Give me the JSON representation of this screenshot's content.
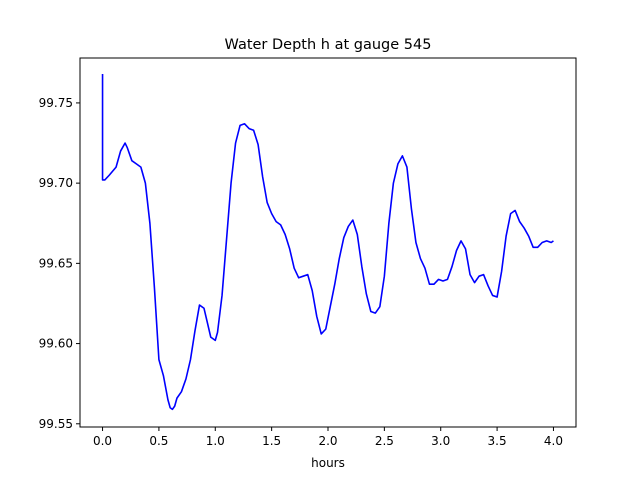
{
  "chart_data": {
    "type": "line",
    "title": "Water Depth h at gauge 545",
    "xlabel": "hours",
    "ylabel": "",
    "xlim": [
      -0.2,
      4.2
    ],
    "ylim": [
      99.548,
      99.778
    ],
    "xticks": [
      0.0,
      0.5,
      1.0,
      1.5,
      2.0,
      2.5,
      3.0,
      3.5,
      4.0
    ],
    "xtick_labels": [
      "0.0",
      "0.5",
      "1.0",
      "1.5",
      "2.0",
      "2.5",
      "3.0",
      "3.5",
      "4.0"
    ],
    "yticks": [
      99.55,
      99.6,
      99.65,
      99.7,
      99.75
    ],
    "ytick_labels": [
      "99.55",
      "99.60",
      "99.65",
      "99.70",
      "99.75"
    ],
    "grid": false,
    "series": [
      {
        "color": "#0000ff",
        "x": [
          0.0,
          0.0,
          0.02,
          0.06,
          0.12,
          0.16,
          0.2,
          0.22,
          0.26,
          0.3,
          0.34,
          0.38,
          0.42,
          0.46,
          0.5,
          0.54,
          0.58,
          0.6,
          0.62,
          0.64,
          0.66,
          0.7,
          0.74,
          0.78,
          0.82,
          0.86,
          0.9,
          0.93,
          0.96,
          1.0,
          1.02,
          1.06,
          1.1,
          1.14,
          1.18,
          1.22,
          1.26,
          1.3,
          1.34,
          1.38,
          1.42,
          1.46,
          1.5,
          1.54,
          1.58,
          1.62,
          1.66,
          1.7,
          1.74,
          1.78,
          1.82,
          1.86,
          1.9,
          1.94,
          1.98,
          2.02,
          2.06,
          2.1,
          2.14,
          2.18,
          2.22,
          2.26,
          2.3,
          2.34,
          2.38,
          2.42,
          2.46,
          2.5,
          2.54,
          2.58,
          2.62,
          2.66,
          2.7,
          2.74,
          2.78,
          2.82,
          2.86,
          2.9,
          2.94,
          2.98,
          3.02,
          3.06,
          3.1,
          3.14,
          3.18,
          3.22,
          3.26,
          3.3,
          3.34,
          3.38,
          3.42,
          3.46,
          3.5,
          3.54,
          3.58,
          3.62,
          3.66,
          3.7,
          3.74,
          3.78,
          3.82,
          3.86,
          3.9,
          3.94,
          3.98,
          4.0
        ],
        "y": [
          99.768,
          99.702,
          99.702,
          99.705,
          99.71,
          99.72,
          99.725,
          99.722,
          99.714,
          99.712,
          99.71,
          99.7,
          99.675,
          99.635,
          99.59,
          99.58,
          99.565,
          99.56,
          99.559,
          99.561,
          99.566,
          99.57,
          99.578,
          99.59,
          99.608,
          99.624,
          99.622,
          99.613,
          99.604,
          99.602,
          99.607,
          99.63,
          99.665,
          99.7,
          99.725,
          99.736,
          99.737,
          99.734,
          99.733,
          99.724,
          99.704,
          99.688,
          99.681,
          99.676,
          99.674,
          99.668,
          99.659,
          99.647,
          99.641,
          99.642,
          99.643,
          99.633,
          99.617,
          99.606,
          99.609,
          99.623,
          99.637,
          99.653,
          99.666,
          99.673,
          99.677,
          99.668,
          99.648,
          99.631,
          99.62,
          99.619,
          99.623,
          99.642,
          99.675,
          99.7,
          99.712,
          99.717,
          99.71,
          99.684,
          99.663,
          99.653,
          99.647,
          99.637,
          99.637,
          99.64,
          99.639,
          99.64,
          99.648,
          99.658,
          99.664,
          99.659,
          99.643,
          99.638,
          99.642,
          99.643,
          99.636,
          99.63,
          99.629,
          99.645,
          99.667,
          99.681,
          99.683,
          99.676,
          99.672,
          99.667,
          99.66,
          99.66,
          99.663,
          99.664,
          99.663,
          99.664
        ]
      }
    ]
  }
}
